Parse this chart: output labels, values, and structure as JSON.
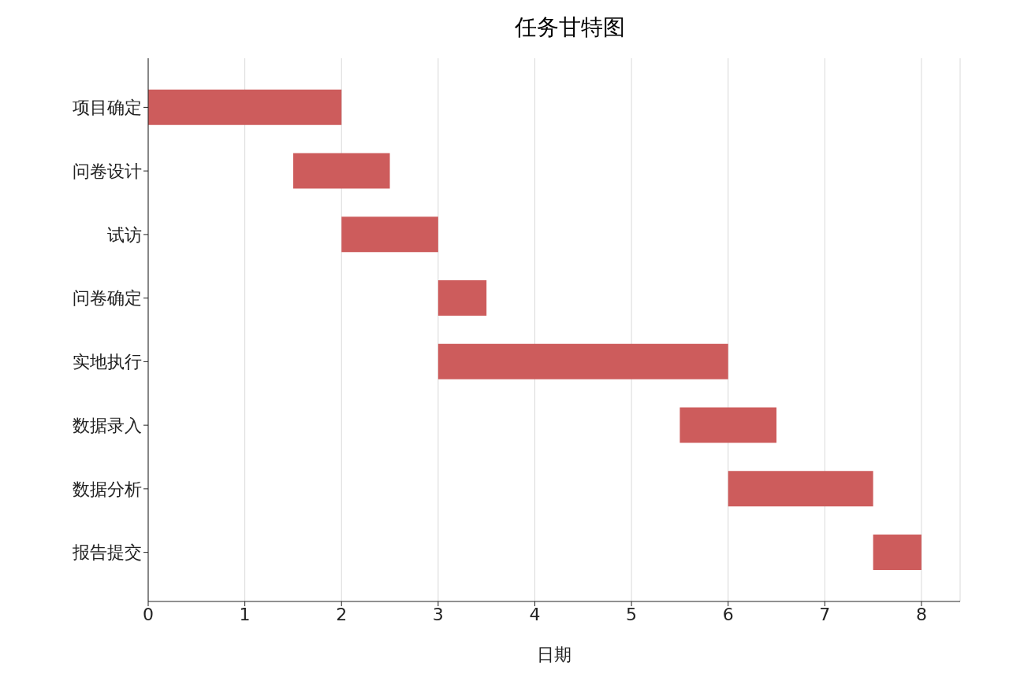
{
  "chart_data": {
    "type": "bar",
    "orientation": "horizontal",
    "title": "任务甘特图",
    "xlabel": "日期",
    "categories": [
      "项目确定",
      "问卷设计",
      "试访",
      "问卷确定",
      "实地执行",
      "数据录入",
      "数据分析",
      "报告提交"
    ],
    "base": [
      0,
      1.5,
      2,
      3,
      3,
      5.5,
      6,
      7.5
    ],
    "values": [
      2,
      1,
      1,
      0.5,
      3,
      1,
      1.5,
      0.5
    ],
    "color": "#cd5c5c",
    "xlim": [
      0,
      8.4
    ],
    "xticks": [
      0,
      1,
      2,
      3,
      4,
      5,
      6,
      7,
      8
    ],
    "grid": "x"
  }
}
